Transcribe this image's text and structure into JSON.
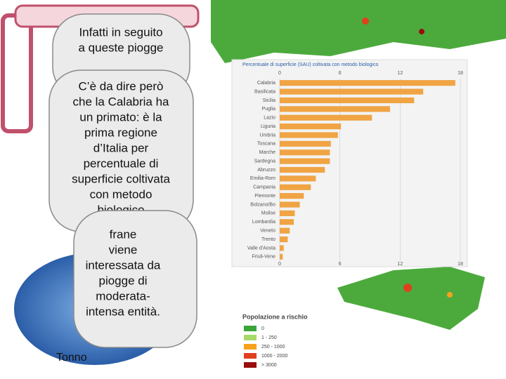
{
  "bubbles": [
    {
      "lines": [
        "Infatti  in seguito",
        "a queste piogge"
      ]
    },
    {
      "lines": [
        "C’è da dire però",
        "che la Calabria ha",
        "un primato: è la",
        "prima regione",
        "d’Italia per",
        "percentuale di",
        "superficie coltivata",
        "con metodo",
        "biologico"
      ]
    },
    {
      "lines": [
        "frane",
        "viene",
        "interessata da",
        "piogge di",
        "moderata-",
        "intensa entità."
      ]
    }
  ],
  "footer_text": "Tonno",
  "chart_data": {
    "type": "bar",
    "orientation": "horizontal",
    "title": "Percentuale di superficie (SAU) coltivata con metodo biologico",
    "categories": [
      "Calabria",
      "Basilicata",
      "Sicilia",
      "Puglia",
      "Lazio",
      "Liguria",
      "Umbria",
      "Toscana",
      "Marche",
      "Sardegna",
      "Abruzzo",
      "Emilia-Rom",
      "Campania",
      "Piemonte",
      "Bolzano/Bo",
      "Molise",
      "Lombardia",
      "Veneto",
      "Trento",
      "Valle d'Aosta",
      "Friuli-Vene"
    ],
    "values": [
      17.5,
      14.3,
      13.4,
      11,
      9.2,
      6.1,
      5.8,
      5.1,
      5,
      5,
      4.5,
      3.6,
      3.1,
      2.4,
      2,
      1.5,
      1.4,
      1,
      0.8,
      0.4,
      0.3
    ],
    "color": "#f0a444",
    "xlim": [
      0,
      18
    ],
    "xticks": [
      0,
      6,
      12,
      18
    ],
    "grid": true
  },
  "legend": {
    "title": "Popolazione a rischio",
    "items": [
      {
        "label": "0",
        "color": "#3aa53a"
      },
      {
        "label": "1 - 250",
        "color": "#a6d96a"
      },
      {
        "label": "250 - 1000",
        "color": "#f7a21b"
      },
      {
        "label": "1000 - 2000",
        "color": "#e0401c"
      },
      {
        "label": "> 3000",
        "color": "#9b0d0d"
      }
    ]
  }
}
